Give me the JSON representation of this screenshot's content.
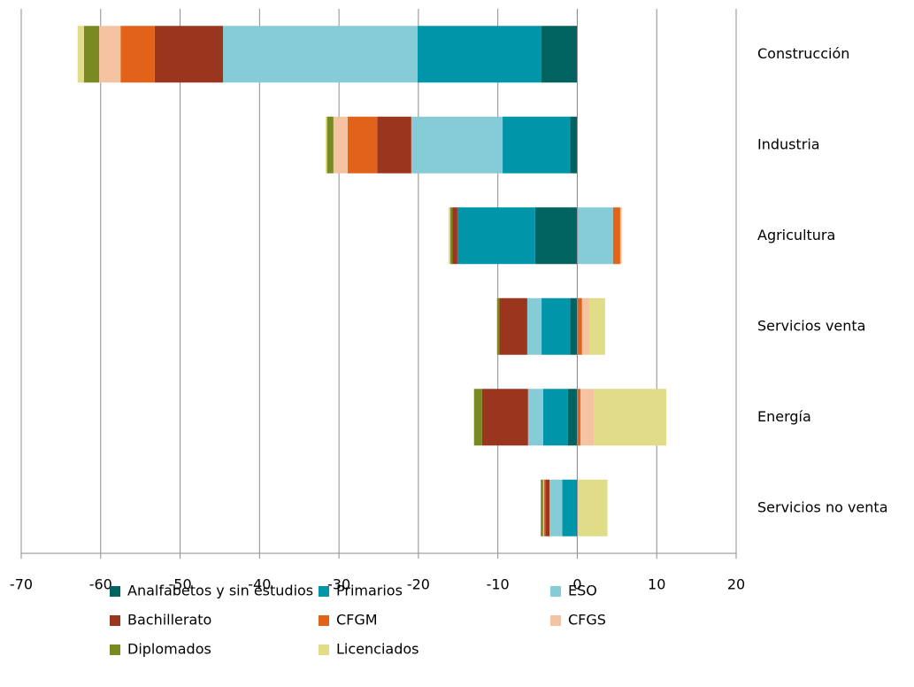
{
  "chart_data": {
    "type": "bar",
    "orientation": "horizontal",
    "stacked": true,
    "categories": [
      "Construcción",
      "Industria",
      "Agricultura",
      "Servicios venta",
      "Energía",
      "Servicios no venta"
    ],
    "series": [
      {
        "name": "Analfabetos y sin estudios",
        "color": "#00635f",
        "values": [
          -4.5,
          -0.9,
          -5.3,
          -0.9,
          -1.2,
          -0.1
        ]
      },
      {
        "name": "Primarios",
        "color": "#0095a8",
        "values": [
          -15.6,
          -8.5,
          -9.8,
          -3.6,
          -3.1,
          -1.8
        ]
      },
      {
        "name": "ESO",
        "color": "#86ccd6",
        "values": [
          -24.5,
          -11.5,
          4.5,
          -1.8,
          -1.9,
          -1.6
        ]
      },
      {
        "name": "Bachillerato",
        "color": "#9b361e",
        "values": [
          -8.6,
          -4.3,
          -0.6,
          -3.5,
          -5.8,
          -0.5
        ]
      },
      {
        "name": "CFGM",
        "color": "#e2621a",
        "values": [
          -4.3,
          -3.7,
          0.9,
          0.6,
          0.4,
          -0.2
        ]
      },
      {
        "name": "CFGS",
        "color": "#f4c4a2",
        "values": [
          -2.7,
          -1.8,
          0.2,
          0.9,
          1.7,
          -0.1
        ]
      },
      {
        "name": "Diplomados",
        "color": "#7a8a22",
        "values": [
          -1.9,
          -0.8,
          -0.3,
          -0.3,
          -1.0,
          -0.3
        ]
      },
      {
        "name": "Licenciados",
        "color": "#e0dc88",
        "values": [
          -0.8,
          -0.2,
          -0.2,
          2.0,
          9.1,
          3.8
        ]
      }
    ],
    "xlim": [
      -70,
      20
    ],
    "xticks": [
      -70,
      -60,
      -50,
      -40,
      -30,
      -20,
      -10,
      0,
      10,
      20
    ],
    "grid": true,
    "legend": "bottom"
  }
}
